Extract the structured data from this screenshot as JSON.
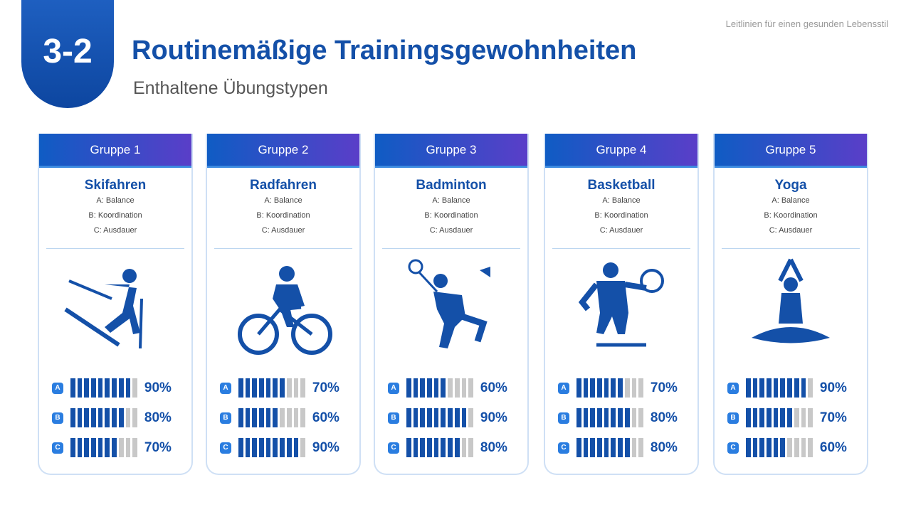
{
  "header": {
    "badge": "3-2",
    "title": "Routinemäßige Trainingsgewohnheiten",
    "subtitle": "Enthaltene Übungstypen",
    "caption": "Leitlinien für einen gesunden Lebensstil"
  },
  "cards": [
    {
      "group": "Gruppe 1",
      "sport": "Skifahren",
      "items": [
        "A: Balance",
        "B: Koordination",
        "C: Ausdauer"
      ],
      "metrics": [
        {
          "letter": "A",
          "value": 90,
          "label": "90%"
        },
        {
          "letter": "B",
          "value": 80,
          "label": "80%"
        },
        {
          "letter": "C",
          "value": 70,
          "label": "70%"
        }
      ]
    },
    {
      "group": "Gruppe 2",
      "sport": "Radfahren",
      "items": [
        "A: Balance",
        "B: Koordination",
        "C: Ausdauer"
      ],
      "metrics": [
        {
          "letter": "A",
          "value": 70,
          "label": "70%"
        },
        {
          "letter": "B",
          "value": 60,
          "label": "60%"
        },
        {
          "letter": "C",
          "value": 90,
          "label": "90%"
        }
      ]
    },
    {
      "group": "Gruppe 3",
      "sport": "Badminton",
      "items": [
        "A: Balance",
        "B: Koordination",
        "C: Ausdauer"
      ],
      "metrics": [
        {
          "letter": "A",
          "value": 60,
          "label": "60%"
        },
        {
          "letter": "B",
          "value": 90,
          "label": "90%"
        },
        {
          "letter": "C",
          "value": 80,
          "label": "80%"
        }
      ]
    },
    {
      "group": "Gruppe 4",
      "sport": "Basketball",
      "items": [
        "A: Balance",
        "B: Koordination",
        "C: Ausdauer"
      ],
      "metrics": [
        {
          "letter": "A",
          "value": 70,
          "label": "70%"
        },
        {
          "letter": "B",
          "value": 80,
          "label": "80%"
        },
        {
          "letter": "C",
          "value": 80,
          "label": "80%"
        }
      ]
    },
    {
      "group": "Gruppe 5",
      "sport": "Yoga",
      "items": [
        "A: Balance",
        "B: Koordination",
        "C: Ausdauer"
      ],
      "metrics": [
        {
          "letter": "A",
          "value": 90,
          "label": "90%"
        },
        {
          "letter": "B",
          "value": 70,
          "label": "70%"
        },
        {
          "letter": "C",
          "value": 60,
          "label": "60%"
        }
      ]
    }
  ]
}
